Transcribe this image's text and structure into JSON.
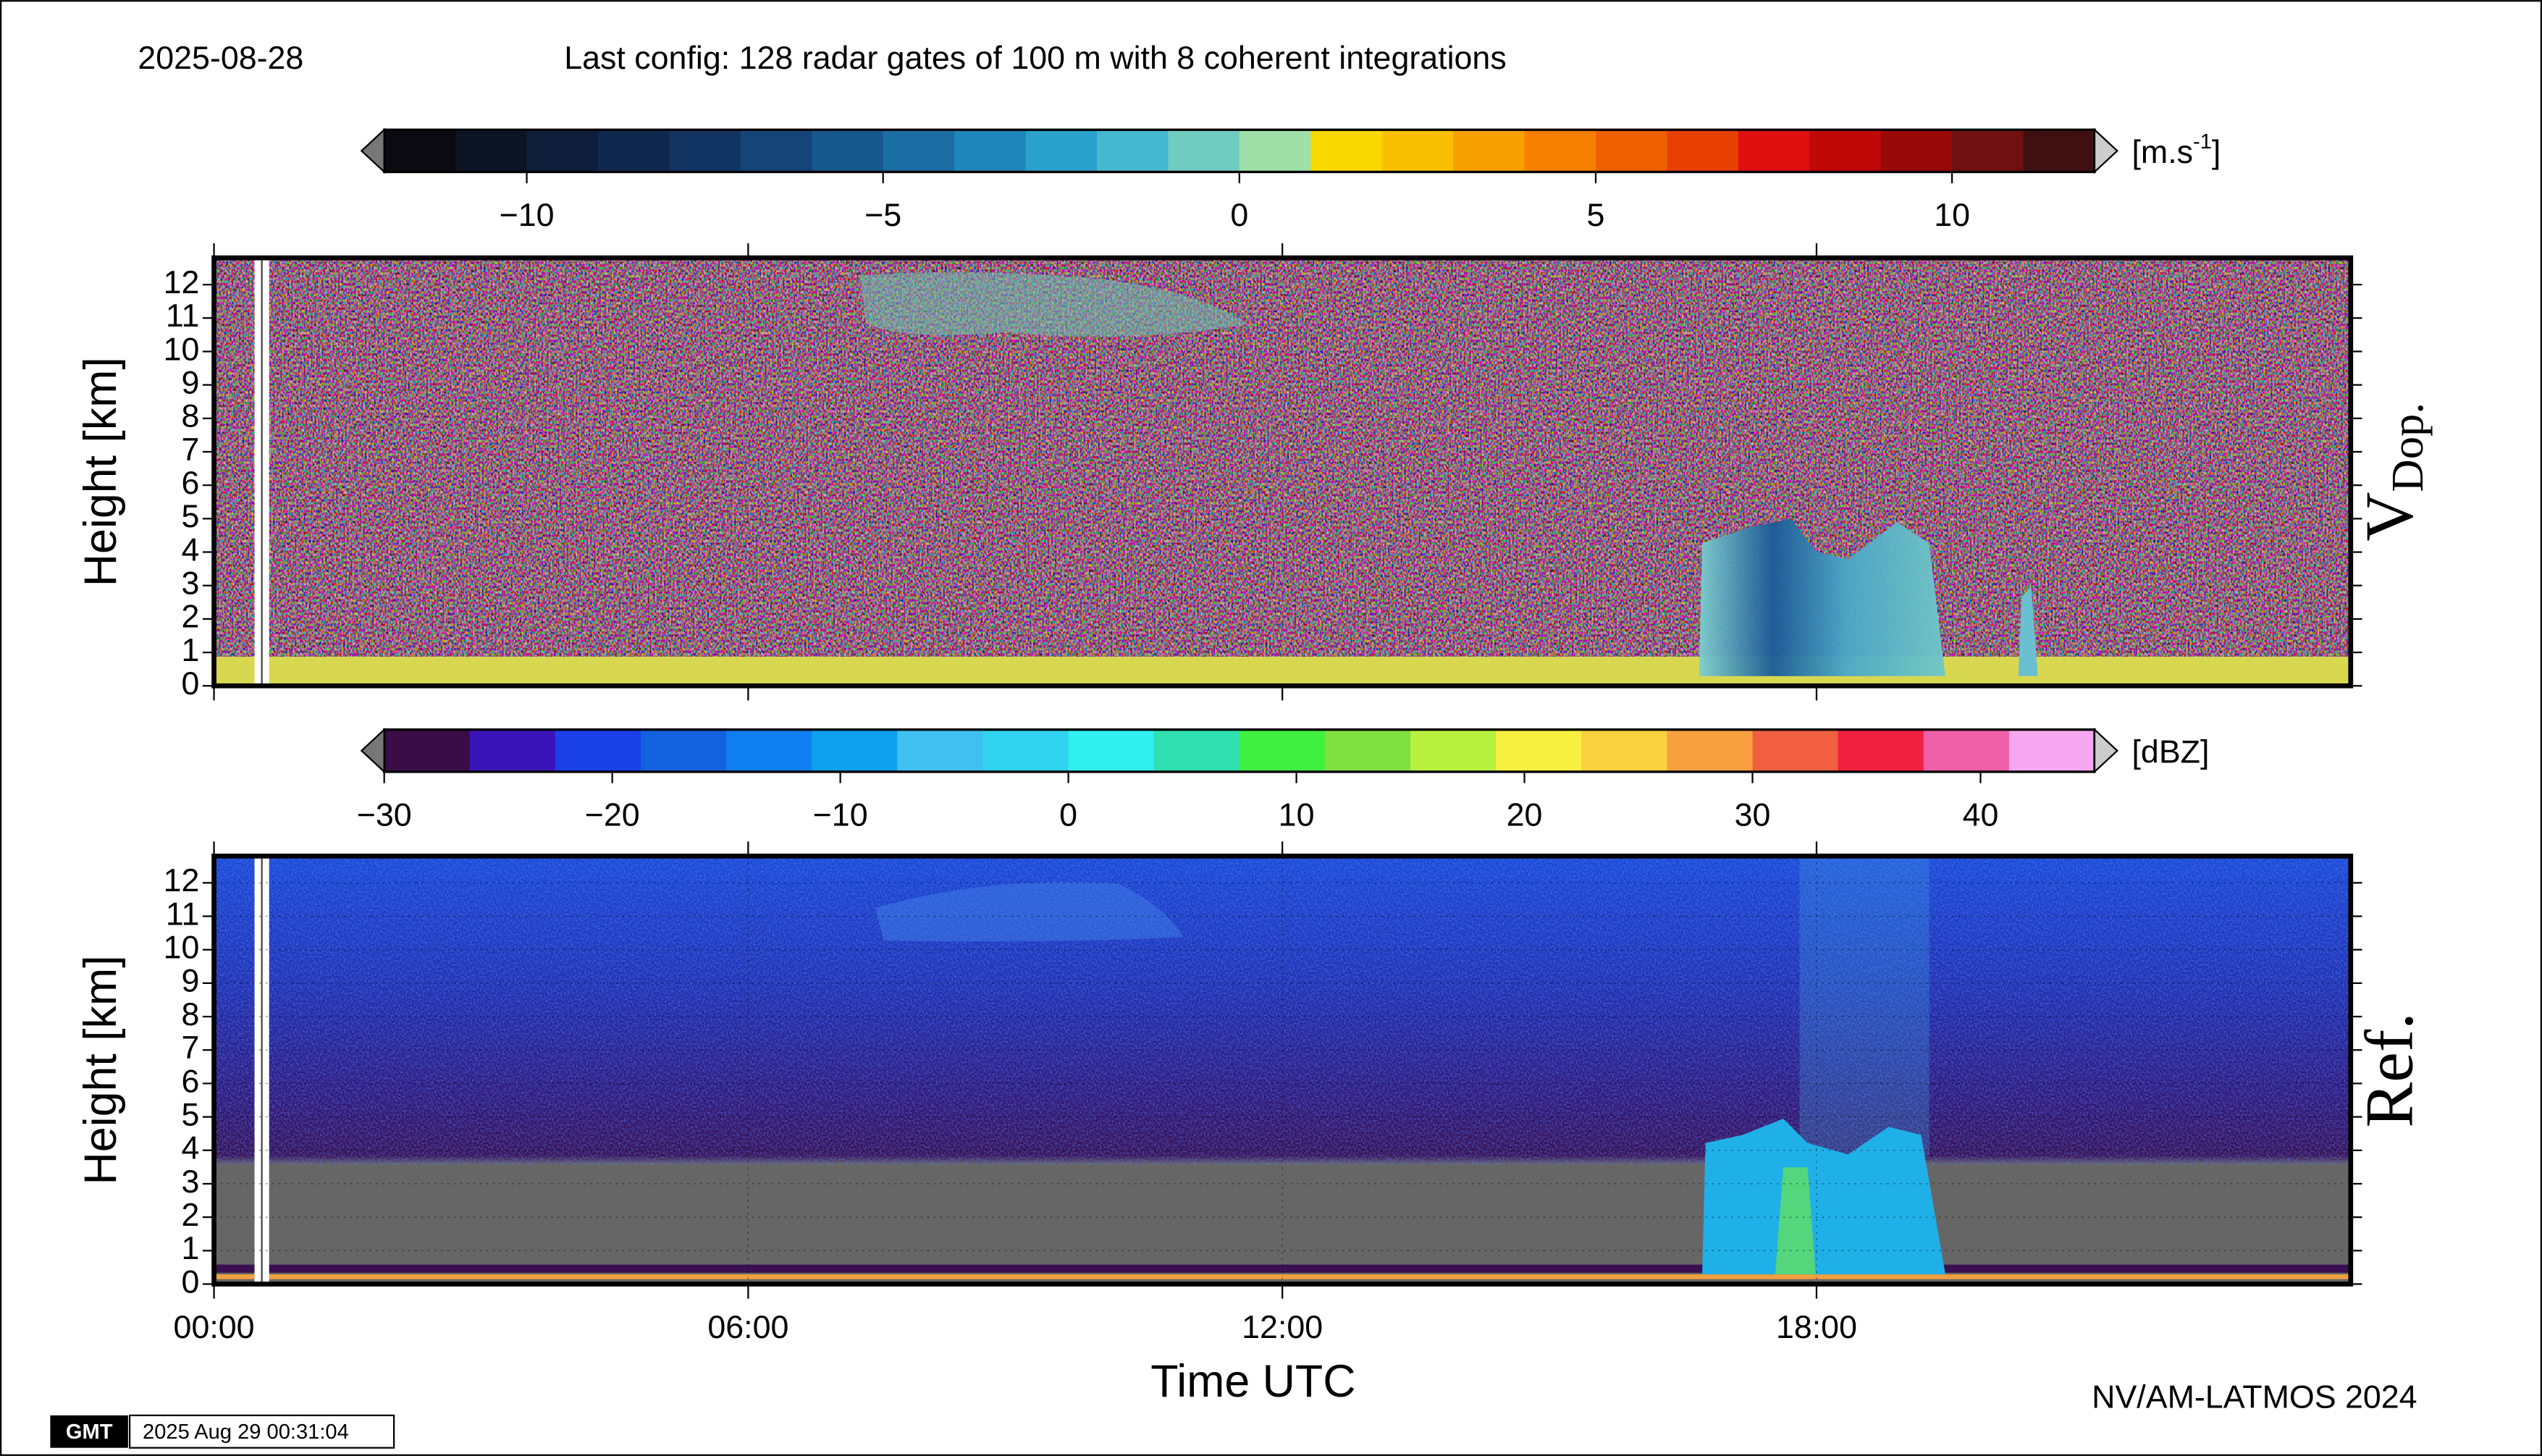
{
  "header": {
    "date": "2025-08-28",
    "config": "Last config: 128 radar gates of 100 m with 8 coherent integrations"
  },
  "chart_data": [
    {
      "type": "heatmap",
      "panel_label": "V",
      "panel_label_sub": "Dop.",
      "ylabel": "Height [km]",
      "ylim": [
        0,
        12.8
      ],
      "yticks": [
        0,
        1,
        2,
        3,
        4,
        5,
        6,
        7,
        8,
        9,
        10,
        11,
        12
      ],
      "xlim": [
        0,
        24
      ],
      "xticks": [
        0,
        6,
        12,
        18
      ],
      "show_xtick_labels": false,
      "colorbar": {
        "label_parts": [
          "[m.s",
          "-1",
          "]"
        ],
        "lim": [
          -12,
          12
        ],
        "ticks": [
          {
            "value": -10,
            "label": "−10"
          },
          {
            "value": -5,
            "label": "−5"
          },
          0,
          5,
          10
        ],
        "colors": [
          "#0a0a10",
          "#0c1424",
          "#0e1e3a",
          "#10284e",
          "#123462",
          "#144478",
          "#16588e",
          "#1a6ea4",
          "#1e86ba",
          "#2aa0cc",
          "#46b8d0",
          "#70ccc0",
          "#9ee0a8",
          "#f8d800",
          "#f8c000",
          "#f8a000",
          "#f88000",
          "#f06000",
          "#e84000",
          "#e01010",
          "#c00808",
          "#980808",
          "#701010",
          "#401010"
        ]
      },
      "grid": false
    },
    {
      "type": "heatmap",
      "panel_label": "Ref.",
      "ylabel": "Height [km]",
      "ylim": [
        0,
        12.8
      ],
      "yticks": [
        0,
        1,
        2,
        3,
        4,
        5,
        6,
        7,
        8,
        9,
        10,
        11,
        12
      ],
      "xlim": [
        0,
        24
      ],
      "xticks": [
        {
          "value": 0,
          "label": "00:00"
        },
        {
          "value": 6,
          "label": "06:00"
        },
        {
          "value": 12,
          "label": "12:00"
        },
        {
          "value": 18,
          "label": "18:00"
        }
      ],
      "show_xtick_labels": true,
      "xlabel": "Time UTC",
      "colorbar": {
        "label_parts": [
          "[dBZ]"
        ],
        "lim": [
          -30,
          45
        ],
        "ticks": [
          {
            "value": -30,
            "label": "−30"
          },
          {
            "value": -20,
            "label": "−20"
          },
          {
            "value": -10,
            "label": "−10"
          },
          0,
          10,
          20,
          30,
          40
        ],
        "colors": [
          "#3a0c48",
          "#3a14b8",
          "#1a40e8",
          "#1262e0",
          "#1080f0",
          "#10a0f0",
          "#40c0f0",
          "#30d4f0",
          "#30f0f0",
          "#30e0b0",
          "#40f040",
          "#80e040",
          "#b8f040",
          "#f8f040",
          "#f8d040",
          "#f8a040",
          "#f06040",
          "#f02040",
          "#f060a8",
          "#f8a8f0"
        ]
      },
      "grid": true
    }
  ],
  "footer": {
    "credit": "NV/AM-LATMOS 2024",
    "logo": "GMT",
    "timestamp": "2025 Aug 29 00:31:04"
  }
}
